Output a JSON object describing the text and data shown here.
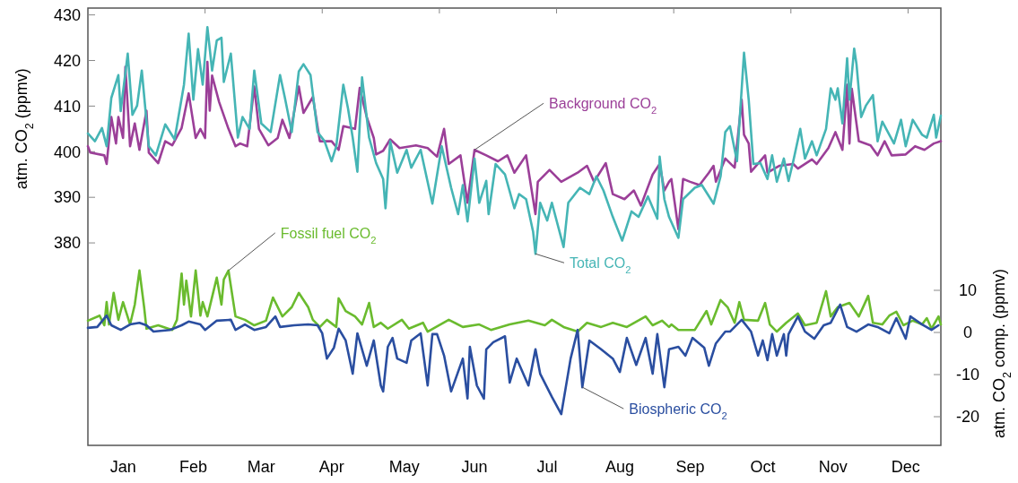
{
  "chart_data": {
    "type": "line",
    "ylabel": "atm. CO$_{2}$ (ppmv)",
    "y2label": "atm. CO$_{2}$ comp. (ppmv)",
    "xlim": [
      "--01-01",
      "--12-31"
    ],
    "xticks": [
      {
        "value": "--01-16",
        "label": "Jan"
      },
      {
        "value": "--02-15",
        "label": "Feb"
      },
      {
        "value": "--03-16",
        "label": "Mar"
      },
      {
        "value": "--04-15",
        "label": "Apr"
      },
      {
        "value": "--05-16",
        "label": "May"
      },
      {
        "value": "--06-15",
        "label": "Jun"
      },
      {
        "value": "--07-16",
        "label": "Jul"
      },
      {
        "value": "--08-16",
        "label": "Aug"
      },
      {
        "value": "--09-15",
        "label": "Sep"
      },
      {
        "value": "--10-16",
        "label": "Oct"
      },
      {
        "value": "--11-15",
        "label": "Nov"
      },
      {
        "value": "--12-16",
        "label": "Dec"
      },
      {
        "value": "--02-20",
        "label": null
      },
      {
        "value": "--04-11",
        "label": null
      },
      {
        "value": "--05-31",
        "label": null
      },
      {
        "value": "--07-20",
        "label": null
      },
      {
        "value": "--09-08",
        "label": null
      },
      {
        "value": "--10-28",
        "label": null
      },
      {
        "value": "--12-17",
        "label": null
      }
    ],
    "ylim": [
      335.6,
      431.5
    ],
    "yticks": [
      380,
      390,
      400,
      410,
      420,
      430
    ],
    "y2lim": [
      -26.8,
      77
    ],
    "y2ticks": [
      10,
      0,
      -10,
      -20
    ],
    "series": [
      {
        "name": "Background CO$_{2}$",
        "color": "#9b3f98",
        "x": [
          "--01-01",
          "--01-02",
          "--01-08",
          "--01-09",
          "--01-11",
          "--01-13",
          "--01-14",
          "--01-16",
          "--01-17",
          "--01-19",
          "--01-21",
          "--01-23",
          "--01-26",
          "--01-27",
          "--01-31",
          "--02-03",
          "--02-06",
          "--02-10",
          "--02-13",
          "--02-16",
          "--02-18",
          "--02-20",
          "--02-21",
          "--02-22",
          "--02-23",
          "--02-26",
          "--03-02",
          "--03-05",
          "--03-07",
          "--03-10",
          "--03-13",
          "--03-15",
          "--03-19",
          "--03-23",
          "--03-25",
          "--03-28",
          "--04-01",
          "--04-03",
          "--04-07",
          "--04-10",
          "--04-15",
          "--04-18",
          "--04-20",
          "--04-25",
          "--04-27",
          "--04-30",
          "--05-03",
          "--05-04",
          "--05-07",
          "--05-10",
          "--05-14",
          "--05-21",
          "--05-26",
          "--05-30",
          "--06-02",
          "--06-04",
          "--06-09",
          "--06-12",
          "--06-15",
          "--06-20",
          "--06-25",
          "--06-29",
          "--07-02",
          "--07-07",
          "--07-11",
          "--07-12",
          "--07-17",
          "--07-22",
          "--07-29",
          "--08-02",
          "--08-05",
          "--08-10",
          "--08-13",
          "--08-18",
          "--08-22",
          "--08-25",
          "--08-30",
          "--09-02",
          "--09-04",
          "--09-06",
          "--09-07",
          "--09-10",
          "--09-12",
          "--09-15",
          "--09-19",
          "--09-23",
          "--09-25",
          "--09-26",
          "--09-30",
          "--10-04",
          "--10-07",
          "--10-08",
          "--10-10",
          "--10-11",
          "--10-17",
          "--10-18",
          "--10-23",
          "--10-29",
          "--10-31",
          "--11-06",
          "--11-08",
          "--11-13",
          "--11-16",
          "--11-19",
          "--11-21",
          "--11-22",
          "--11-23",
          "--11-26",
          "--12-01",
          "--12-04",
          "--12-07",
          "--12-10",
          "--12-16",
          "--12-20",
          "--12-24",
          "--12-28",
          "--12-31"
        ],
        "values": [
          401.2,
          399.8,
          399.2,
          397.3,
          407.6,
          401.8,
          407.6,
          403,
          418.6,
          401.2,
          406.2,
          400.4,
          409,
          399.8,
          397.5,
          402.3,
          401.4,
          405.2,
          412.8,
          403,
          405,
          403,
          419.7,
          409,
          416.7,
          410.9,
          405,
          401.2,
          401.8,
          401.2,
          414.3,
          405,
          401.4,
          403,
          407,
          403,
          414.3,
          408.5,
          412,
          402.3,
          402.3,
          400.4,
          405.6,
          405,
          414,
          407.6,
          403,
          399.4,
          400.2,
          402.7,
          400.8,
          401.4,
          400.8,
          398.9,
          405,
          397.3,
          399.2,
          388.8,
          400.4,
          399.2,
          397.9,
          399.2,
          395.4,
          399.2,
          386.3,
          393.4,
          396,
          393.4,
          395.4,
          396.9,
          393.4,
          397.5,
          390.7,
          389.6,
          391.5,
          388.2,
          395,
          397.3,
          391.5,
          393.4,
          394,
          383,
          394,
          393.4,
          392.7,
          395.4,
          396.9,
          393.4,
          398.5,
          396.5,
          411.4,
          403.7,
          401.8,
          395.6,
          399.2,
          395.4,
          396.9,
          397.3,
          396.3,
          398.3,
          397.3,
          400.8,
          404.3,
          400.4,
          414.7,
          401.8,
          413.8,
          402.3,
          401.4,
          399.2,
          402.3,
          399.2,
          399.4,
          401.2,
          400.4,
          401.8,
          402.3
        ]
      },
      {
        "name": "Total CO$_{2}$",
        "color": "#45b5b5",
        "x": [
          "--01-01",
          "--01-04",
          "--01-07",
          "--01-09",
          "--01-11",
          "--01-14",
          "--01-15",
          "--01-18",
          "--01-20",
          "--01-22",
          "--01-24",
          "--01-27",
          "--01-30",
          "--02-03",
          "--02-07",
          "--02-11",
          "--02-13",
          "--02-15",
          "--02-17",
          "--02-19",
          "--02-21",
          "--02-23",
          "--02-25",
          "--02-27",
          "--02-28",
          "--03-03",
          "--03-06",
          "--03-08",
          "--03-11",
          "--03-13",
          "--03-16",
          "--03-20",
          "--03-24",
          "--03-26",
          "--03-29",
          "--04-01",
          "--04-03",
          "--04-06",
          "--04-09",
          "--04-12",
          "--04-15",
          "--04-17",
          "--04-20",
          "--04-22",
          "--04-24",
          "--04-26",
          "--04-28",
          "--05-01",
          "--05-04",
          "--05-07",
          "--05-08",
          "--05-10",
          "--05-13",
          "--05-17",
          "--05-19",
          "--05-23",
          "--05-28",
          "--06-01",
          "--06-05",
          "--06-08",
          "--06-10",
          "--06-12",
          "--06-15",
          "--06-17",
          "--06-20",
          "--06-21",
          "--06-24",
          "--06-28",
          "--07-02",
          "--07-04",
          "--07-07",
          "--07-10",
          "--07-11",
          "--07-13",
          "--07-16",
          "--07-18",
          "--07-23",
          "--07-25",
          "--07-30",
          "--08-03",
          "--08-06",
          "--08-09",
          "--08-13",
          "--08-17",
          "--08-21",
          "--08-24",
          "--08-28",
          "--09-01",
          "--09-02",
          "--09-04",
          "--09-06",
          "--09-10",
          "--09-12",
          "--09-17",
          "--09-20",
          "--09-25",
          "--09-28",
          "--09-30",
          "--10-02",
          "--10-05",
          "--10-08",
          "--10-10",
          "--10-12",
          "--10-15",
          "--10-18",
          "--10-20",
          "--10-22",
          "--10-25",
          "--10-27",
          "--10-29",
          "--11-01",
          "--11-03",
          "--11-06",
          "--11-08",
          "--11-12",
          "--11-14",
          "--11-16",
          "--11-17",
          "--11-19",
          "--11-21",
          "--11-22",
          "--11-24",
          "--11-25",
          "--11-27",
          "--11-29",
          "--12-02",
          "--12-04",
          "--12-06",
          "--12-09",
          "--12-11",
          "--12-14",
          "--12-16",
          "--12-19",
          "--12-23",
          "--12-25",
          "--12-28",
          "--12-29",
          "--12-31"
        ],
        "values": [
          404,
          402.3,
          405.2,
          401.2,
          411.8,
          416.8,
          408.9,
          421.5,
          408.1,
          410.1,
          417.8,
          401.2,
          399.2,
          406,
          402.7,
          414.7,
          425.9,
          411.4,
          422.5,
          414.7,
          427.3,
          417.8,
          424.4,
          425,
          415.3,
          421.5,
          403.1,
          407.6,
          405,
          417.8,
          406.2,
          404.3,
          416.8,
          412,
          404.3,
          417.6,
          419.2,
          416.8,
          404.3,
          402.3,
          397.9,
          401.2,
          414.7,
          409.5,
          403.1,
          395.6,
          416.3,
          403.1,
          397.5,
          394,
          387.6,
          402.3,
          395.4,
          400.4,
          396.5,
          400.4,
          388.6,
          401.2,
          392.1,
          386.3,
          392.7,
          384.7,
          398.5,
          388.8,
          393.6,
          386.3,
          397.3,
          395,
          387.6,
          390.7,
          389.6,
          382.4,
          377.6,
          388.8,
          384.9,
          388.8,
          379.1,
          388.8,
          392.1,
          390.7,
          394.6,
          391.5,
          385.7,
          380.5,
          386.9,
          385.7,
          390.2,
          385.3,
          398.9,
          389.6,
          385.7,
          381.1,
          389.6,
          392.1,
          392.7,
          388.6,
          394.6,
          404.3,
          405.6,
          397.9,
          421.7,
          411.4,
          397.3,
          397.5,
          394,
          399.2,
          393.4,
          398.5,
          393.6,
          397.9,
          405,
          398.5,
          402.3,
          399.2,
          405,
          413.9,
          411.4,
          413.9,
          406.2,
          420.5,
          411.4,
          422.6,
          419.2,
          407.6,
          410.1,
          412.4,
          402.3,
          406.6,
          403.7,
          401.8,
          407,
          401.2,
          407,
          403.7,
          403.1,
          408.1,
          403.1,
          407.9
        ]
      },
      {
        "name": "Fossil fuel CO$_{2}$",
        "color": "#6abb2e",
        "axis": "y2",
        "x": [
          "--01-01",
          "--01-06",
          "--01-08",
          "--01-09",
          "--01-10",
          "--01-12",
          "--01-14",
          "--01-16",
          "--01-19",
          "--01-21",
          "--01-23",
          "--01-25",
          "--01-26",
          "--01-31",
          "--02-06",
          "--02-08",
          "--02-10",
          "--02-11",
          "--02-12",
          "--02-14",
          "--02-16",
          "--02-18",
          "--02-19",
          "--02-21",
          "--02-25",
          "--02-27",
          "--02-28",
          "--03-02",
          "--03-05",
          "--03-09",
          "--03-13",
          "--03-18",
          "--03-21",
          "--03-25",
          "--03-29",
          "--04-01",
          "--04-05",
          "--04-07",
          "--04-10",
          "--04-13",
          "--04-17",
          "--04-18",
          "--04-21",
          "--04-25",
          "--04-28",
          "--05-01",
          "--05-03",
          "--05-06",
          "--05-09",
          "--05-15",
          "--05-18",
          "--05-24",
          "--05-26",
          "--06-04",
          "--06-10",
          "--06-17",
          "--06-22",
          "--06-30",
          "--07-08",
          "--07-15",
          "--07-18",
          "--07-23",
          "--07-29",
          "--08-02",
          "--08-08",
          "--08-13",
          "--08-19",
          "--08-27",
          "--08-30",
          "--09-03",
          "--09-06",
          "--09-07",
          "--09-10",
          "--09-17",
          "--09-22",
          "--09-24",
          "--09-28",
          "--10-01",
          "--10-04",
          "--10-06",
          "--10-08",
          "--10-14",
          "--10-17",
          "--10-19",
          "--10-22",
          "--10-26",
          "--10-31",
          "--11-03",
          "--11-08",
          "--11-12",
          "--11-14",
          "--11-17",
          "--11-22",
          "--11-26",
          "--11-30",
          "--12-02",
          "--12-06",
          "--12-09",
          "--12-12",
          "--12-15",
          "--12-19",
          "--12-23",
          "--12-25",
          "--12-27",
          "--12-30",
          "--12-31"
        ],
        "values": [
          2.8,
          4,
          1.7,
          7.2,
          1.9,
          9.4,
          3,
          7.2,
          1.9,
          6.6,
          14.7,
          6,
          0.9,
          1.7,
          0.6,
          3,
          14,
          6.6,
          12.3,
          3.8,
          14.7,
          4,
          7.2,
          3.8,
          13,
          6.6,
          12.6,
          14.7,
          3.8,
          3,
          1.7,
          2.8,
          8.3,
          3.8,
          6,
          9.4,
          6,
          3,
          1.3,
          3,
          1.3,
          8.1,
          5.1,
          3.8,
          1.9,
          7,
          1.3,
          2.3,
          0.9,
          3,
          0.9,
          2.3,
          0.2,
          3,
          1.3,
          1.9,
          0.6,
          1.9,
          2.8,
          1.7,
          3,
          1.3,
          0.2,
          2.3,
          1.3,
          2.3,
          1.3,
          3.8,
          1.7,
          2.8,
          1.3,
          1.9,
          0.6,
          0.6,
          5.1,
          1.9,
          7.7,
          6,
          2.3,
          7.2,
          3,
          2.8,
          7,
          1.9,
          0.2,
          2.3,
          4.5,
          1.7,
          2.3,
          9.8,
          3.8,
          6,
          7,
          3.8,
          8.7,
          2.3,
          1.9,
          4,
          4.9,
          1.7,
          2.8,
          1.9,
          3.4,
          0.9,
          3.8,
          1.9
        ]
      },
      {
        "name": "Biospheric CO$_{2}$",
        "color": "#2a4ea0",
        "axis": "y2",
        "x": [
          "--01-01",
          "--01-05",
          "--01-09",
          "--01-11",
          "--01-15",
          "--01-19",
          "--01-23",
          "--01-26",
          "--01-29",
          "--02-05",
          "--02-10",
          "--02-13",
          "--02-18",
          "--02-20",
          "--02-25",
          "--03-03",
          "--03-05",
          "--03-09",
          "--03-13",
          "--03-18",
          "--03-22",
          "--03-24",
          "--03-30",
          "--04-05",
          "--04-09",
          "--04-11",
          "--04-13",
          "--04-16",
          "--04-18",
          "--04-21",
          "--04-24",
          "--04-26",
          "--04-30",
          "--05-03",
          "--05-06",
          "--05-07",
          "--05-09",
          "--05-11",
          "--05-13",
          "--05-17",
          "--05-19",
          "--05-23",
          "--05-26",
          "--05-28",
          "--05-30",
          "--06-02",
          "--06-05",
          "--06-10",
          "--06-12",
          "--06-13",
          "--06-16",
          "--06-19",
          "--06-20",
          "--06-23",
          "--06-28",
          "--06-30",
          "--07-03",
          "--07-08",
          "--07-11",
          "--07-13",
          "--07-18",
          "--07-22",
          "--07-26",
          "--07-29",
          "--07-31",
          "--08-03",
          "--08-08",
          "--08-13",
          "--08-16",
          "--08-19",
          "--08-23",
          "--08-27",
          "--08-30",
          "--09-01",
          "--09-04",
          "--09-06",
          "--09-10",
          "--09-13",
          "--09-16",
          "--09-21",
          "--09-23",
          "--09-26",
          "--09-30",
          "--10-02",
          "--10-07",
          "--10-11",
          "--10-14",
          "--10-16",
          "--10-18",
          "--10-20",
          "--10-22",
          "--10-25",
          "--10-26",
          "--10-27",
          "--10-31",
          "--11-03",
          "--11-07",
          "--11-11",
          "--11-14",
          "--11-18",
          "--11-21",
          "--11-25",
          "--11-30",
          "--12-04",
          "--12-09",
          "--12-12",
          "--12-16",
          "--12-18",
          "--12-23",
          "--12-27",
          "--12-30"
        ],
        "values": [
          1.1,
          1.3,
          4,
          1.7,
          0.6,
          1.9,
          2.3,
          1.7,
          0.2,
          0.6,
          1.7,
          2.6,
          1.9,
          0.6,
          2.8,
          3,
          0.6,
          1.9,
          0.6,
          1.3,
          3.8,
          1.3,
          1.7,
          1.9,
          1.7,
          -0.2,
          -6.2,
          -3.6,
          0.9,
          -1.9,
          -9.8,
          -0.2,
          -7.9,
          -1.9,
          -12.6,
          -14,
          -3.4,
          -1.3,
          -6.2,
          -7.2,
          -1.9,
          -0.2,
          -12.6,
          -0.4,
          -0.4,
          -5.5,
          -14,
          -6.2,
          -15.7,
          -3.4,
          -12.6,
          -15.7,
          -4,
          -2.3,
          -0.9,
          -11.9,
          -6.2,
          -12.6,
          -4,
          -9.8,
          -15.3,
          -19.4,
          -6.2,
          0.6,
          -13,
          -1.9,
          -4,
          -6.2,
          -9.4,
          -1.3,
          -7.7,
          -1.3,
          -9.8,
          -0.4,
          -13,
          -4,
          -3.4,
          -5.5,
          -1.3,
          -3.6,
          -7.9,
          -2.6,
          0.2,
          0.2,
          3,
          0.2,
          -5.5,
          -1.9,
          -6.6,
          -0.4,
          -5.5,
          -0.4,
          -5.5,
          -0.4,
          3.8,
          0.2,
          -1.5,
          1.7,
          2.3,
          6.6,
          1.3,
          0.2,
          1.9,
          1.3,
          -0.2,
          3.4,
          -1.5,
          3.8,
          1.9,
          0.6,
          1.7
        ]
      }
    ]
  }
}
